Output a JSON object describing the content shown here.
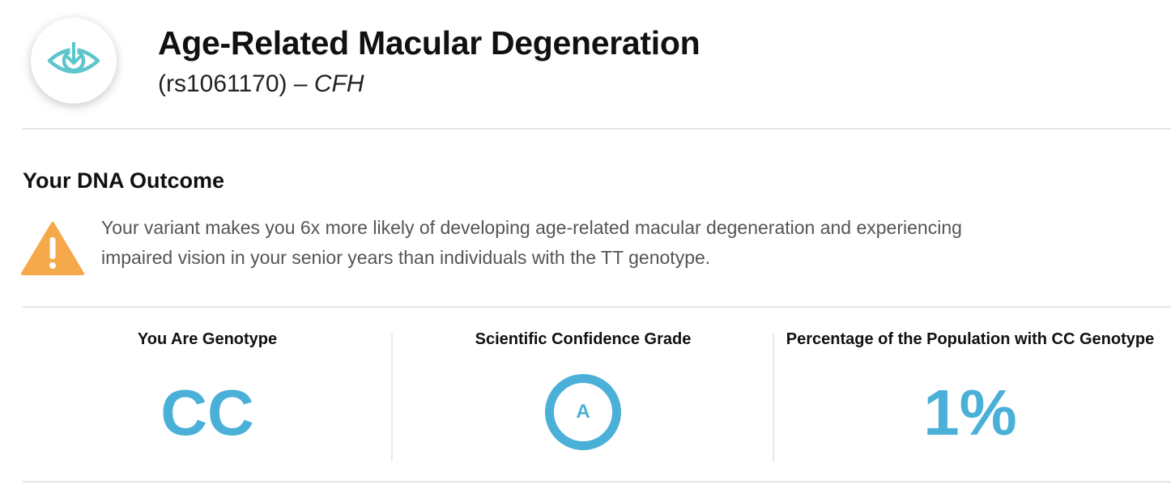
{
  "header": {
    "icon": "eye-icon",
    "title": "Age-Related Macular Degeneration",
    "rsid": "(rs1061170) – ",
    "gene": "CFH"
  },
  "outcome": {
    "heading": "Your DNA Outcome",
    "icon": "warning-icon",
    "text": "Your variant makes you 6x more likely of developing age-related macular degeneration and experiencing impaired vision in your senior years than individuals with the TT genotype."
  },
  "stats": {
    "genotype": {
      "label": "You Are Genotype",
      "value": "CC"
    },
    "confidence": {
      "label": "Scientific Confidence Grade",
      "grade": "A"
    },
    "population": {
      "label": "Percentage of the Population with CC Genotype",
      "value": "1%"
    }
  },
  "colors": {
    "accent": "#4ab0d8",
    "icon_teal": "#5cc6cc",
    "warning": "#f5a94a"
  }
}
